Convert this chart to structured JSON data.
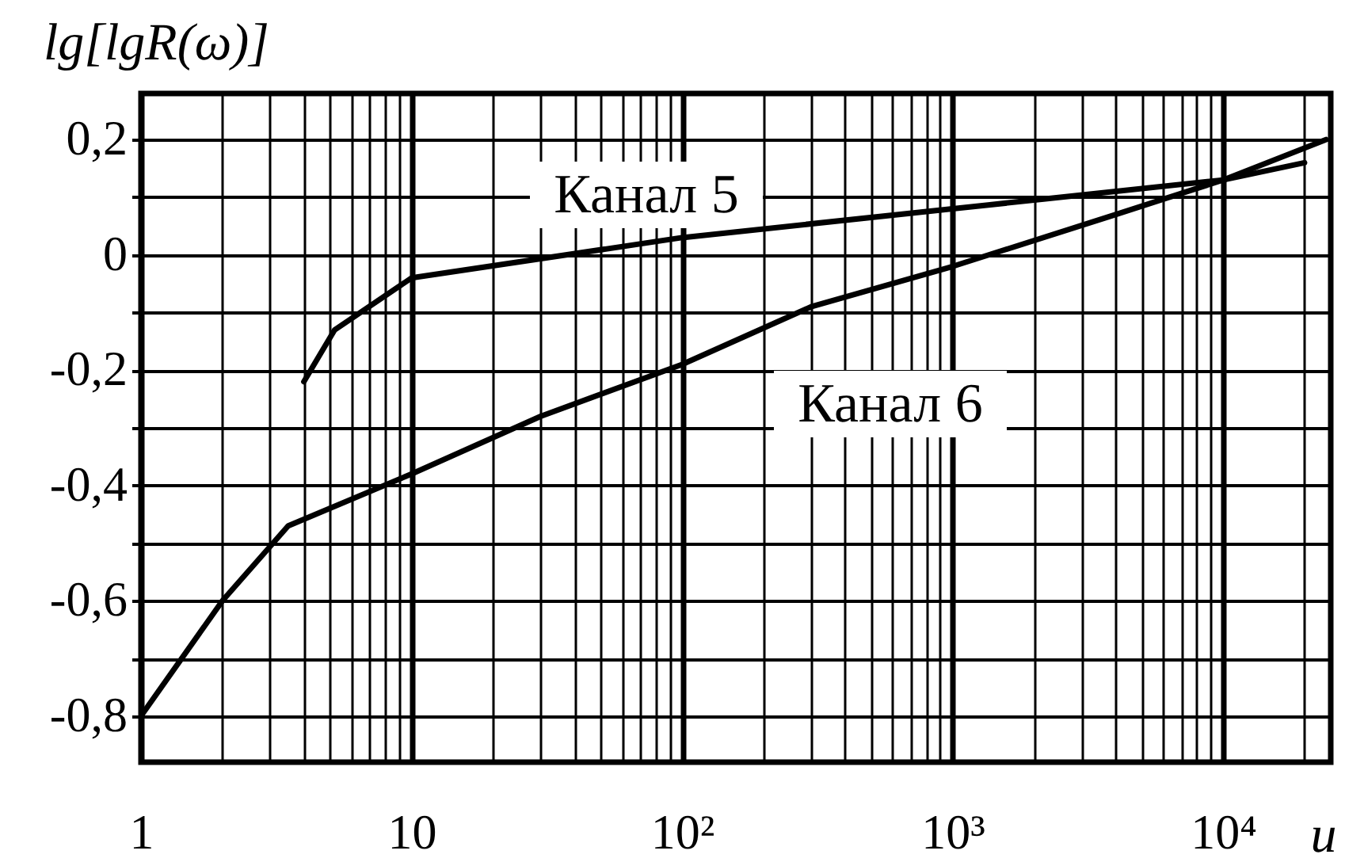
{
  "chart_data": {
    "type": "line",
    "xlabel": "u",
    "ylabel": "lg[lgR(ω)]",
    "log": "x",
    "grid": true,
    "line_style": "solid",
    "xlim": [
      1,
      25000
    ],
    "ylim": [
      -0.88,
      0.28
    ],
    "xticks": [
      1,
      {
        "value": 2,
        "label": null
      },
      {
        "value": 3,
        "label": null
      },
      {
        "value": 4,
        "label": null
      },
      {
        "value": 5,
        "label": null
      },
      {
        "value": 6,
        "label": null
      },
      {
        "value": 7,
        "label": null
      },
      {
        "value": 8,
        "label": null
      },
      {
        "value": 9,
        "label": null
      },
      10,
      {
        "value": 20,
        "label": null
      },
      {
        "value": 30,
        "label": null
      },
      {
        "value": 40,
        "label": null
      },
      {
        "value": 50,
        "label": null
      },
      {
        "value": 60,
        "label": null
      },
      {
        "value": 70,
        "label": null
      },
      {
        "value": 80,
        "label": null
      },
      {
        "value": 90,
        "label": null
      },
      {
        "value": 100,
        "label": "10²"
      },
      {
        "value": 200,
        "label": null
      },
      {
        "value": 300,
        "label": null
      },
      {
        "value": 400,
        "label": null
      },
      {
        "value": 500,
        "label": null
      },
      {
        "value": 600,
        "label": null
      },
      {
        "value": 700,
        "label": null
      },
      {
        "value": 800,
        "label": null
      },
      {
        "value": 900,
        "label": null
      },
      {
        "value": 1000,
        "label": "10³"
      },
      {
        "value": 2000,
        "label": null
      },
      {
        "value": 3000,
        "label": null
      },
      {
        "value": 4000,
        "label": null
      },
      {
        "value": 5000,
        "label": null
      },
      {
        "value": 6000,
        "label": null
      },
      {
        "value": 7000,
        "label": null
      },
      {
        "value": 8000,
        "label": null
      },
      {
        "value": 9000,
        "label": null
      },
      {
        "value": 10000,
        "label": "10⁴"
      },
      {
        "value": 20000,
        "label": null
      }
    ],
    "yticks": [
      {
        "value": 0.2,
        "label": "0,2"
      },
      {
        "value": 0.1,
        "label": null
      },
      0,
      {
        "value": -0.1,
        "label": null
      },
      {
        "value": -0.2,
        "label": "-0,2"
      },
      {
        "value": -0.3,
        "label": null
      },
      {
        "value": -0.4,
        "label": "-0,4"
      },
      {
        "value": -0.5,
        "label": null
      },
      {
        "value": -0.6,
        "label": "-0,6"
      },
      {
        "value": -0.7,
        "label": null
      },
      {
        "value": -0.8,
        "label": "-0,8"
      }
    ],
    "series": [
      {
        "name": "Канал 5",
        "color": "#000000",
        "x": [
          4,
          5.2,
          10,
          100,
          1000,
          10000,
          20000
        ],
        "values": [
          -0.22,
          -0.13,
          -0.04,
          0.03,
          0.08,
          0.13,
          0.16
        ]
      },
      {
        "name": "Канал 6",
        "color": "#000000",
        "x": [
          1,
          2,
          3.5,
          10,
          30,
          100,
          300,
          1000,
          4000,
          10000,
          24000
        ],
        "values": [
          -0.8,
          -0.6,
          -0.47,
          -0.38,
          -0.28,
          -0.19,
          -0.09,
          -0.02,
          0.07,
          0.13,
          0.2
        ]
      }
    ]
  }
}
